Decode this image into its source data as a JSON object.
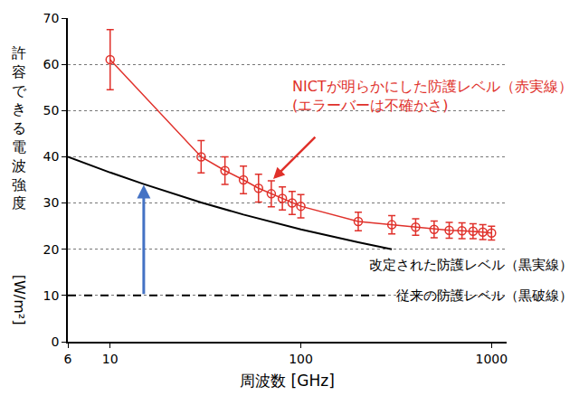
{
  "chart_data": {
    "type": "line",
    "x_label": "周波数 [GHz]",
    "y_label": "許容できる電波強度 [W/m²]",
    "log": "x",
    "grid": true,
    "xlim": [
      6,
      1200
    ],
    "xticks": [
      6,
      10,
      100,
      1000
    ],
    "ylim": [
      0,
      70
    ],
    "yticks": [
      0,
      10,
      20,
      30,
      40,
      50,
      60,
      70
    ],
    "annotations": [
      "(エラーバーは不確かさ)"
    ],
    "series": [
      {
        "name": "NICTが明らかにした防護レベル（赤実線）",
        "color": "#e0312b",
        "marker": "circle-open",
        "line_style": "solid",
        "x": [
          10,
          30,
          40,
          50,
          60,
          70,
          80,
          90,
          100,
          200,
          300,
          400,
          500,
          600,
          700,
          800,
          900,
          1000
        ],
        "values": [
          61,
          40,
          37,
          35,
          33.2,
          32,
          31,
          30,
          29.3,
          26,
          25.3,
          24.8,
          24.3,
          24.1,
          24,
          23.9,
          23.7,
          23.5
        ],
        "errors": [
          6.5,
          3.5,
          3,
          3,
          3,
          2.8,
          2.5,
          2.5,
          2.5,
          2,
          2,
          1.8,
          1.8,
          1.7,
          1.7,
          1.6,
          1.6,
          1.5
        ]
      },
      {
        "name": "改定された防護レベル（黒実線）",
        "color": "#000000",
        "marker": "none",
        "line_style": "solid",
        "x": [
          6,
          10,
          15,
          20,
          30,
          50,
          100,
          200,
          300
        ],
        "values": [
          40,
          36.6,
          34.1,
          32.4,
          30.1,
          27.5,
          24.3,
          21.5,
          20
        ]
      },
      {
        "name": "従来の防護レベル（黒破線）",
        "color": "#000000",
        "marker": "none",
        "line_style": "dashed",
        "x": [
          6,
          300
        ],
        "values": [
          10,
          10
        ]
      }
    ]
  }
}
